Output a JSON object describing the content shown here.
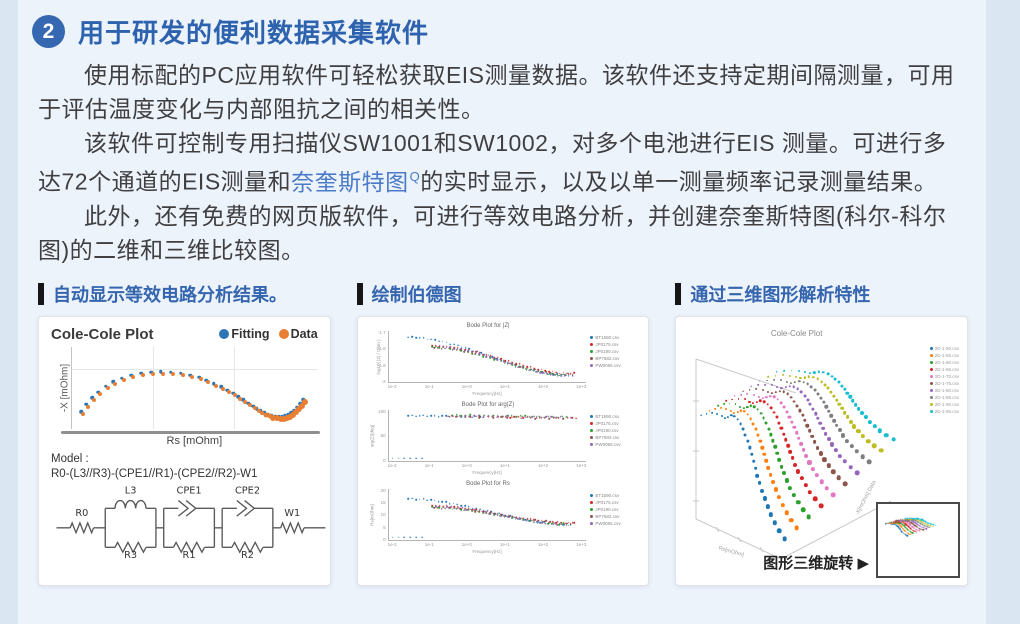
{
  "colors": {
    "accent_blue": "#2d62ae",
    "link_blue": "#4a7bc8",
    "badge_blue": "#3667b1",
    "data_orange": "#e87f33",
    "fitting_blue": "#2e75b6"
  },
  "header": {
    "number": "2",
    "title": "用于研发的便利数据采集软件"
  },
  "paragraphs": {
    "p1": "使用标配的PC应用软件可轻松获取EIS测量数据。该软件还支持定期间隔测量，可用于评估温度变化与内部阻抗之间的相关性。",
    "p2_before": "该软件可控制专用扫描仪SW1001和SW1002，对多个电池进行EIS 测量。可进行多达72个通道的EIS测量和",
    "p2_link": "奈奎斯特图",
    "p2_link_sup": "Q",
    "p2_after": "的实时显示，以及以单一测量频率记录测量结果。",
    "p3": "此外，还有免费的网页版软件，可进行等效电路分析，并创建奈奎斯特图(科尔-科尔图)的二维和三维比较图。"
  },
  "panels": [
    {
      "title": "自动显示等效电路分析结果。"
    },
    {
      "title": "绘制伯德图"
    },
    {
      "title": "通过三维图形解析特性"
    }
  ],
  "model": {
    "label": "Model :",
    "formula": "R0-(L3//R3)-(CPE1//R1)-(CPE2//R2)-W1",
    "components": {
      "r0": "R0",
      "l3": "L3",
      "r3": "R3",
      "cpe1": "CPE1",
      "r1": "R1",
      "cpe2": "CPE2",
      "r2": "R2",
      "w1": "W1"
    }
  },
  "rotate_note": {
    "label": "图形三维旋转",
    "arrow": "▶"
  },
  "chart_data": [
    {
      "id": "cole2d",
      "type": "scatter",
      "title": "Cole-Cole Plot",
      "xlabel": "Rs [mOhm]",
      "ylabel": "-X [mOhm]",
      "legend": [
        {
          "label": "Fitting",
          "color": "#2e75b6"
        },
        {
          "label": "Data",
          "color": "#e87f33"
        }
      ],
      "axis_numeric_labels": "none visible",
      "series": [
        {
          "name": "Fitting",
          "color": "#2e75b6",
          "points_from": "Data",
          "offset": [
            -0.008,
            0.025
          ]
        },
        {
          "name": "Data",
          "color": "#e87f33",
          "points": [
            [
              0.045,
              0.18
            ],
            [
              0.065,
              0.27
            ],
            [
              0.09,
              0.35
            ],
            [
              0.115,
              0.42
            ],
            [
              0.145,
              0.49
            ],
            [
              0.175,
              0.545
            ],
            [
              0.21,
              0.59
            ],
            [
              0.25,
              0.625
            ],
            [
              0.29,
              0.65
            ],
            [
              0.33,
              0.665
            ],
            [
              0.37,
              0.67
            ],
            [
              0.41,
              0.665
            ],
            [
              0.45,
              0.65
            ],
            [
              0.49,
              0.628
            ],
            [
              0.525,
              0.6
            ],
            [
              0.555,
              0.565
            ],
            [
              0.585,
              0.525
            ],
            [
              0.615,
              0.485
            ],
            [
              0.64,
              0.445
            ],
            [
              0.665,
              0.405
            ],
            [
              0.685,
              0.365
            ],
            [
              0.705,
              0.325
            ],
            [
              0.725,
              0.285
            ],
            [
              0.745,
              0.25
            ],
            [
              0.76,
              0.22
            ],
            [
              0.775,
              0.195
            ],
            [
              0.79,
              0.17,
              5
            ],
            [
              0.805,
              0.15,
              5
            ],
            [
              0.82,
              0.135,
              6
            ],
            [
              0.835,
              0.125,
              6
            ],
            [
              0.85,
              0.12,
              6
            ],
            [
              0.862,
              0.122,
              6
            ],
            [
              0.875,
              0.13,
              6
            ],
            [
              0.888,
              0.145,
              6
            ],
            [
              0.9,
              0.168,
              6
            ],
            [
              0.912,
              0.198,
              6
            ],
            [
              0.925,
              0.235,
              6
            ],
            [
              0.938,
              0.278,
              6
            ],
            [
              0.95,
              0.325,
              6
            ]
          ]
        }
      ]
    },
    {
      "id": "bode_z",
      "type": "scatter",
      "title": "Bode Plot for |Z|",
      "ylabel": "log10( |Z| / Ohm )",
      "xlabel": "Frequency[Hz]",
      "yticks": [
        "-1.7",
        "-1.8",
        "-1.9",
        "-2"
      ],
      "xticks": [
        "1e-2",
        "1e-1",
        "1e+0",
        "1e+1",
        "1e+2",
        "1e+3"
      ],
      "legend": [
        {
          "label": "BT1590.csv",
          "color": "#1f77b4"
        },
        {
          "label": "JP0175.csv",
          "color": "#d62728"
        },
        {
          "label": "JP0190.csv",
          "color": "#2ca02c"
        },
        {
          "label": "BP7582.csv",
          "color": "#8c564b"
        },
        {
          "label": "PW0055.csv",
          "color": "#9467bd"
        }
      ],
      "series": [
        {
          "color": "#1f77b4",
          "gen": {
            "x0": 0.1,
            "x1": 0.93,
            "y0": 0.87,
            "y1": 0.12,
            "n": 44,
            "wob": 0.012
          }
        },
        {
          "color": "#d62728",
          "gen": {
            "x0": 0.22,
            "x1": 0.94,
            "y0": 0.7,
            "y1": 0.16,
            "n": 40,
            "wob": 0.012
          }
        },
        {
          "color": "#2ca02c",
          "gen": {
            "x0": 0.22,
            "x1": 0.9,
            "y0": 0.68,
            "y1": 0.13,
            "n": 38,
            "wob": 0.012
          }
        },
        {
          "color": "#8c564b",
          "gen": {
            "x0": 0.23,
            "x1": 0.93,
            "y0": 0.66,
            "y1": 0.14,
            "n": 38,
            "wob": 0.012
          }
        },
        {
          "color": "#9467bd",
          "gen": {
            "x0": 0.24,
            "x1": 0.91,
            "y0": 0.69,
            "y1": 0.11,
            "n": 38,
            "wob": 0.012
          }
        }
      ]
    },
    {
      "id": "bode_arg",
      "type": "scatter",
      "title": "Bode Plot for arg(Z)",
      "ylabel": "arg(Z)[deg]",
      "xlabel": "Frequency[Hz]",
      "yticks": [
        "100",
        "50",
        "0"
      ],
      "xticks": [
        "1e-2",
        "1e-1",
        "1e+0",
        "1e+1",
        "1e+2",
        "1e+3"
      ],
      "legend": [
        {
          "label": "BT1590.csv",
          "color": "#1f77b4"
        },
        {
          "label": "JP0175.csv",
          "color": "#d62728"
        },
        {
          "label": "JP0190.csv",
          "color": "#2ca02c"
        },
        {
          "label": "BP7582.csv",
          "color": "#8c564b"
        },
        {
          "label": "PW0055.csv",
          "color": "#9467bd"
        }
      ],
      "series": [
        {
          "color": "#1f77b4",
          "gen": {
            "x0": 0.1,
            "x1": 0.5,
            "y0": 0.88,
            "y1": 0.86,
            "n": 22,
            "wob": 0.01
          }
        },
        {
          "color": "#d62728",
          "gen": {
            "x0": 0.3,
            "x1": 0.95,
            "y0": 0.87,
            "y1": 0.84,
            "n": 30,
            "wob": 0.012
          }
        },
        {
          "color": "#2ca02c",
          "gen": {
            "x0": 0.32,
            "x1": 0.9,
            "y0": 0.89,
            "y1": 0.86,
            "n": 26,
            "wob": 0.012
          }
        },
        {
          "color": "#8c564b",
          "gen": {
            "x0": 0.34,
            "x1": 0.93,
            "y0": 0.86,
            "y1": 0.83,
            "n": 26,
            "wob": 0.012
          }
        },
        {
          "color": "#9467bd",
          "gen": {
            "x0": 0.36,
            "x1": 0.92,
            "y0": 0.88,
            "y1": 0.85,
            "n": 24,
            "wob": 0.012
          }
        },
        {
          "color": "#1f77b4",
          "gen": {
            "x0": 0.02,
            "x1": 0.17,
            "y0": 0.05,
            "y1": 0.05,
            "n": 6,
            "wob": 0
          }
        }
      ]
    },
    {
      "id": "bode_rs",
      "type": "scatter",
      "title": "Bode Plot for Rs",
      "ylabel": "Rs[mOhm]",
      "xlabel": "Frequency[Hz]",
      "yticks": [
        "20",
        "15",
        "10",
        "5",
        "0"
      ],
      "xticks": [
        "1e-2",
        "1e-1",
        "1e+0",
        "1e+1",
        "1e+2",
        "1e+3"
      ],
      "legend": [
        {
          "label": "BT1590.csv",
          "color": "#1f77b4"
        },
        {
          "label": "JP0175.csv",
          "color": "#d62728"
        },
        {
          "label": "JP0190.csv",
          "color": "#2ca02c"
        },
        {
          "label": "BP7582.csv",
          "color": "#8c564b"
        },
        {
          "label": "PW0055.csv",
          "color": "#9467bd"
        }
      ],
      "series": [
        {
          "color": "#1f77b4",
          "gen": {
            "x0": 0.1,
            "x1": 0.92,
            "y0": 0.8,
            "y1": 0.3,
            "n": 44,
            "wob": 0.012
          }
        },
        {
          "color": "#d62728",
          "gen": {
            "x0": 0.22,
            "x1": 0.94,
            "y0": 0.66,
            "y1": 0.32,
            "n": 40,
            "wob": 0.012
          }
        },
        {
          "color": "#2ca02c",
          "gen": {
            "x0": 0.22,
            "x1": 0.9,
            "y0": 0.64,
            "y1": 0.3,
            "n": 38,
            "wob": 0.012
          }
        },
        {
          "color": "#8c564b",
          "gen": {
            "x0": 0.23,
            "x1": 0.93,
            "y0": 0.62,
            "y1": 0.33,
            "n": 38,
            "wob": 0.012
          }
        },
        {
          "color": "#9467bd",
          "gen": {
            "x0": 0.24,
            "x1": 0.91,
            "y0": 0.65,
            "y1": 0.29,
            "n": 36,
            "wob": 0.012
          }
        },
        {
          "color": "#1f77b4",
          "gen": {
            "x0": 0.02,
            "x1": 0.17,
            "y0": 0.05,
            "y1": 0.05,
            "n": 6,
            "wob": 0
          }
        }
      ]
    },
    {
      "id": "cole3d",
      "type": "scatter",
      "title": "Cole-Cole Plot",
      "axis_labels": [
        "Rs[mOhm]",
        "-X[mOhm]  Data"
      ],
      "legend": [
        {
          "label": "2D-1-50.csv",
          "color": "#1f77b4"
        },
        {
          "label": "2D-1-55.csv",
          "color": "#ff7f0e"
        },
        {
          "label": "2D-1-60.csv",
          "color": "#2ca02c"
        },
        {
          "label": "2D-1-65.csv",
          "color": "#d62728"
        },
        {
          "label": "2D-1-70.csv",
          "color": "#e377c2"
        },
        {
          "label": "2D-1-75.csv",
          "color": "#8c564b"
        },
        {
          "label": "2D-1-80.csv",
          "color": "#9467bd"
        },
        {
          "label": "2D-1-85.csv",
          "color": "#7f7f7f"
        },
        {
          "label": "2D-1-90.csv",
          "color": "#bcbd22"
        },
        {
          "label": "2D-1-95.csv",
          "color": "#17becf"
        }
      ],
      "offset": [
        0.039,
        0.024
      ],
      "spread": [
        0.045,
        -0.05
      ],
      "base": [
        [
          0.06,
          0.66
        ],
        [
          0.085,
          0.668
        ],
        [
          0.11,
          0.672
        ],
        [
          0.135,
          0.668
        ],
        [
          0.155,
          0.655
        ],
        [
          0.17,
          0.645
        ],
        [
          0.185,
          0.652
        ],
        [
          0.2,
          0.66
        ],
        [
          0.215,
          0.655
        ],
        [
          0.23,
          0.64
        ],
        [
          0.243,
          0.618
        ],
        [
          0.255,
          0.592
        ],
        [
          0.266,
          0.563
        ],
        [
          0.276,
          0.532
        ],
        [
          0.286,
          0.5
        ],
        [
          0.295,
          0.467
        ],
        [
          0.304,
          0.433
        ],
        [
          0.313,
          0.398
        ],
        [
          0.322,
          0.362
        ],
        [
          0.332,
          0.325
        ],
        [
          0.343,
          0.287
        ],
        [
          0.355,
          0.248
        ],
        [
          0.369,
          0.208
        ],
        [
          0.385,
          0.168
        ],
        [
          0.403,
          0.128
        ],
        [
          0.424,
          0.088
        ],
        [
          0.448,
          0.05
        ]
      ]
    }
  ]
}
